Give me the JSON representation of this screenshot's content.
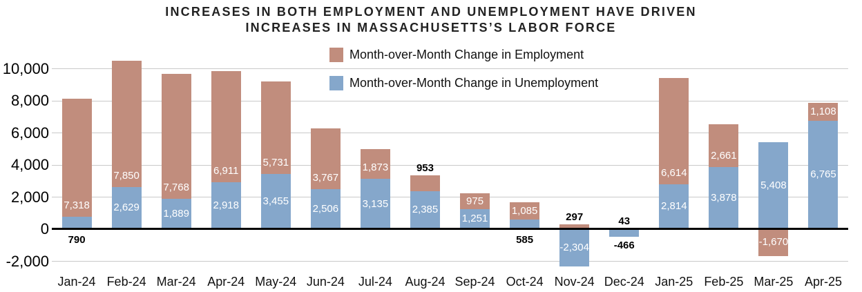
{
  "title": {
    "line1": "INCREASES IN BOTH EMPLOYMENT AND UNEMPLOYMENT HAVE DRIVEN",
    "line2": "INCREASES IN MASSACHUSETTS’S LABOR FORCE"
  },
  "legend": {
    "items": [
      {
        "label": "Month-over-Month Change in Employment",
        "color": "#c18d7d"
      },
      {
        "label": "Month-over-Month Change in Unemployment",
        "color": "#85a7cb"
      }
    ]
  },
  "chart_data": {
    "type": "bar",
    "stacked": true,
    "title": "INCREASES IN BOTH EMPLOYMENT AND UNEMPLOYMENT HAVE DRIVEN INCREASES IN MASSACHUSETTS’S LABOR FORCE",
    "categories": [
      "Jan-24",
      "Feb-24",
      "Mar-24",
      "Apr-24",
      "May-24",
      "Jun-24",
      "Jul-24",
      "Aug-24",
      "Sep-24",
      "Oct-24",
      "Nov-24",
      "Dec-24",
      "Jan-25",
      "Feb-25",
      "Mar-25",
      "Apr-25"
    ],
    "series": [
      {
        "name": "Month-over-Month Change in Employment",
        "key": "employment",
        "color": "#c18d7d",
        "values": [
          7318,
          7850,
          7768,
          6911,
          5731,
          3767,
          1873,
          953,
          975,
          1085,
          297,
          43,
          6614,
          2661,
          -1670,
          1108
        ],
        "labels": [
          "7,318",
          "7,850",
          "7,768",
          "6,911",
          "5,731",
          "3,767",
          "1,873",
          "953",
          "975",
          "1,085",
          "297",
          "43",
          "6,614",
          "2,661",
          "-1,670",
          "1,108"
        ],
        "label_positions": [
          "inside-bottom",
          "inside-bottom",
          "inside-bottom",
          "inside-bottom",
          "inside-bottom",
          "inside-bottom",
          "inside-bottom",
          "above",
          "inside-center",
          "inside-center",
          "above",
          "above",
          "inside-bottom",
          "inside-bottom",
          "inside-center",
          "inside-center"
        ]
      },
      {
        "name": "Month-over-Month Change in Unemployment",
        "key": "unemployment",
        "color": "#85a7cb",
        "values": [
          790,
          2629,
          1889,
          2918,
          3455,
          2506,
          3135,
          2385,
          1251,
          585,
          -2304,
          -466,
          2814,
          3878,
          5408,
          6765
        ],
        "labels": [
          "790",
          "2,629",
          "1,889",
          "2,918",
          "3,455",
          "2,506",
          "3,135",
          "2,385",
          "1,251",
          "585",
          "-2,304",
          "-466",
          "2,814",
          "3,878",
          "5,408",
          "6,765"
        ],
        "label_positions": [
          "below-axis",
          "inside-center",
          "inside-center",
          "inside-center",
          "inside-center",
          "inside-center",
          "inside-center",
          "inside-center",
          "inside-center",
          "below-axis",
          "inside-center",
          "below-bar",
          "inside-center",
          "inside-center",
          "inside-center",
          "inside-center"
        ]
      }
    ],
    "y_axis": {
      "ticks": [
        {
          "label": "10,000",
          "value": 10000
        },
        {
          "label": "8,000",
          "value": 8000
        },
        {
          "label": "6,000",
          "value": 6000
        },
        {
          "label": "4,000",
          "value": 4000
        },
        {
          "label": "2,000",
          "value": 2000
        },
        {
          "label": "0",
          "value": 0
        },
        {
          "label": "-2,000",
          "value": -2000
        }
      ],
      "range": [
        -2500,
        10500
      ],
      "gridlines": true
    },
    "colors": {
      "gridline": "#c9c9c9",
      "zero_line": "#000000",
      "label_inside": "#ffffff",
      "label_outside": "#000000"
    },
    "legend_position": "top-center"
  }
}
